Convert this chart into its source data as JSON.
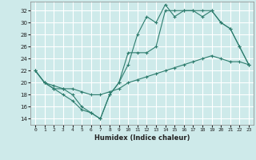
{
  "xlabel": "Humidex (Indice chaleur)",
  "ylabel": "",
  "xlim": [
    -0.5,
    23.5
  ],
  "ylim": [
    13,
    33.5
  ],
  "yticks": [
    14,
    16,
    18,
    20,
    22,
    24,
    26,
    28,
    30,
    32
  ],
  "xticks": [
    0,
    1,
    2,
    3,
    4,
    5,
    6,
    7,
    8,
    9,
    10,
    11,
    12,
    13,
    14,
    15,
    16,
    17,
    18,
    19,
    20,
    21,
    22,
    23
  ],
  "bg_color": "#ceeaea",
  "grid_color": "#ffffff",
  "line_color": "#2e7d6e",
  "line1_x": [
    0,
    1,
    2,
    3,
    4,
    5,
    6,
    7,
    8,
    9,
    10,
    11,
    12,
    13,
    14,
    15,
    16,
    17,
    18,
    19,
    20,
    21,
    22,
    23
  ],
  "line1_y": [
    22,
    20,
    19,
    19,
    18,
    16,
    15,
    14,
    18,
    20,
    23,
    28,
    31,
    30,
    33,
    31,
    32,
    32,
    32,
    32,
    30,
    29,
    26,
    23
  ],
  "line2_x": [
    0,
    1,
    2,
    3,
    4,
    5,
    6,
    7,
    8,
    9,
    10,
    11,
    12,
    13,
    14,
    15,
    16,
    17,
    18,
    19,
    20,
    21,
    22,
    23
  ],
  "line2_y": [
    22,
    20,
    19,
    18,
    17,
    15.5,
    15,
    14,
    18,
    20,
    25,
    25,
    25,
    26,
    32,
    32,
    32,
    32,
    31,
    32,
    30,
    29,
    26,
    23
  ],
  "line3_x": [
    0,
    1,
    2,
    3,
    4,
    5,
    6,
    7,
    8,
    9,
    10,
    11,
    12,
    13,
    14,
    15,
    16,
    17,
    18,
    19,
    20,
    21,
    22,
    23
  ],
  "line3_y": [
    22,
    20,
    19.5,
    19,
    19,
    18.5,
    18,
    18,
    18.5,
    19,
    20,
    20.5,
    21,
    21.5,
    22,
    22.5,
    23,
    23.5,
    24,
    24.5,
    24,
    23.5,
    23.5,
    23
  ]
}
